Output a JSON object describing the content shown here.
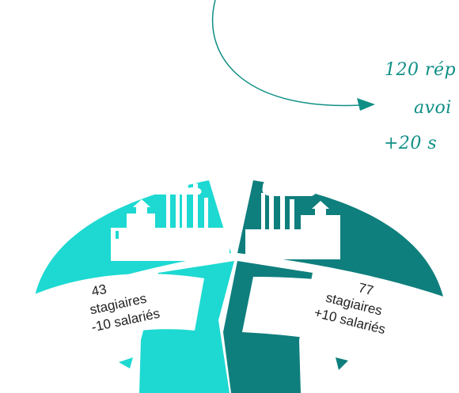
{
  "annotation": {
    "line1": "120 rép",
    "line2": "avoi",
    "line3": "+20 s"
  },
  "segments": [
    {
      "count": "43",
      "line2": "stagiaires",
      "line3": "-10 salariés",
      "color": "#1dd9d2"
    },
    {
      "count": "77",
      "line2": "stagiaires",
      "line3": "+10 salariés",
      "color": "#0f7f7d"
    }
  ],
  "colors": {
    "light_teal": "#1dd9d2",
    "dark_teal": "#0f7f7d",
    "ink": "#0f8f86",
    "label_bg": "#ffffff",
    "label_text": "#222222"
  },
  "icons": [
    "factory-icon",
    "factory-icon",
    "curved-arrow-icon"
  ]
}
